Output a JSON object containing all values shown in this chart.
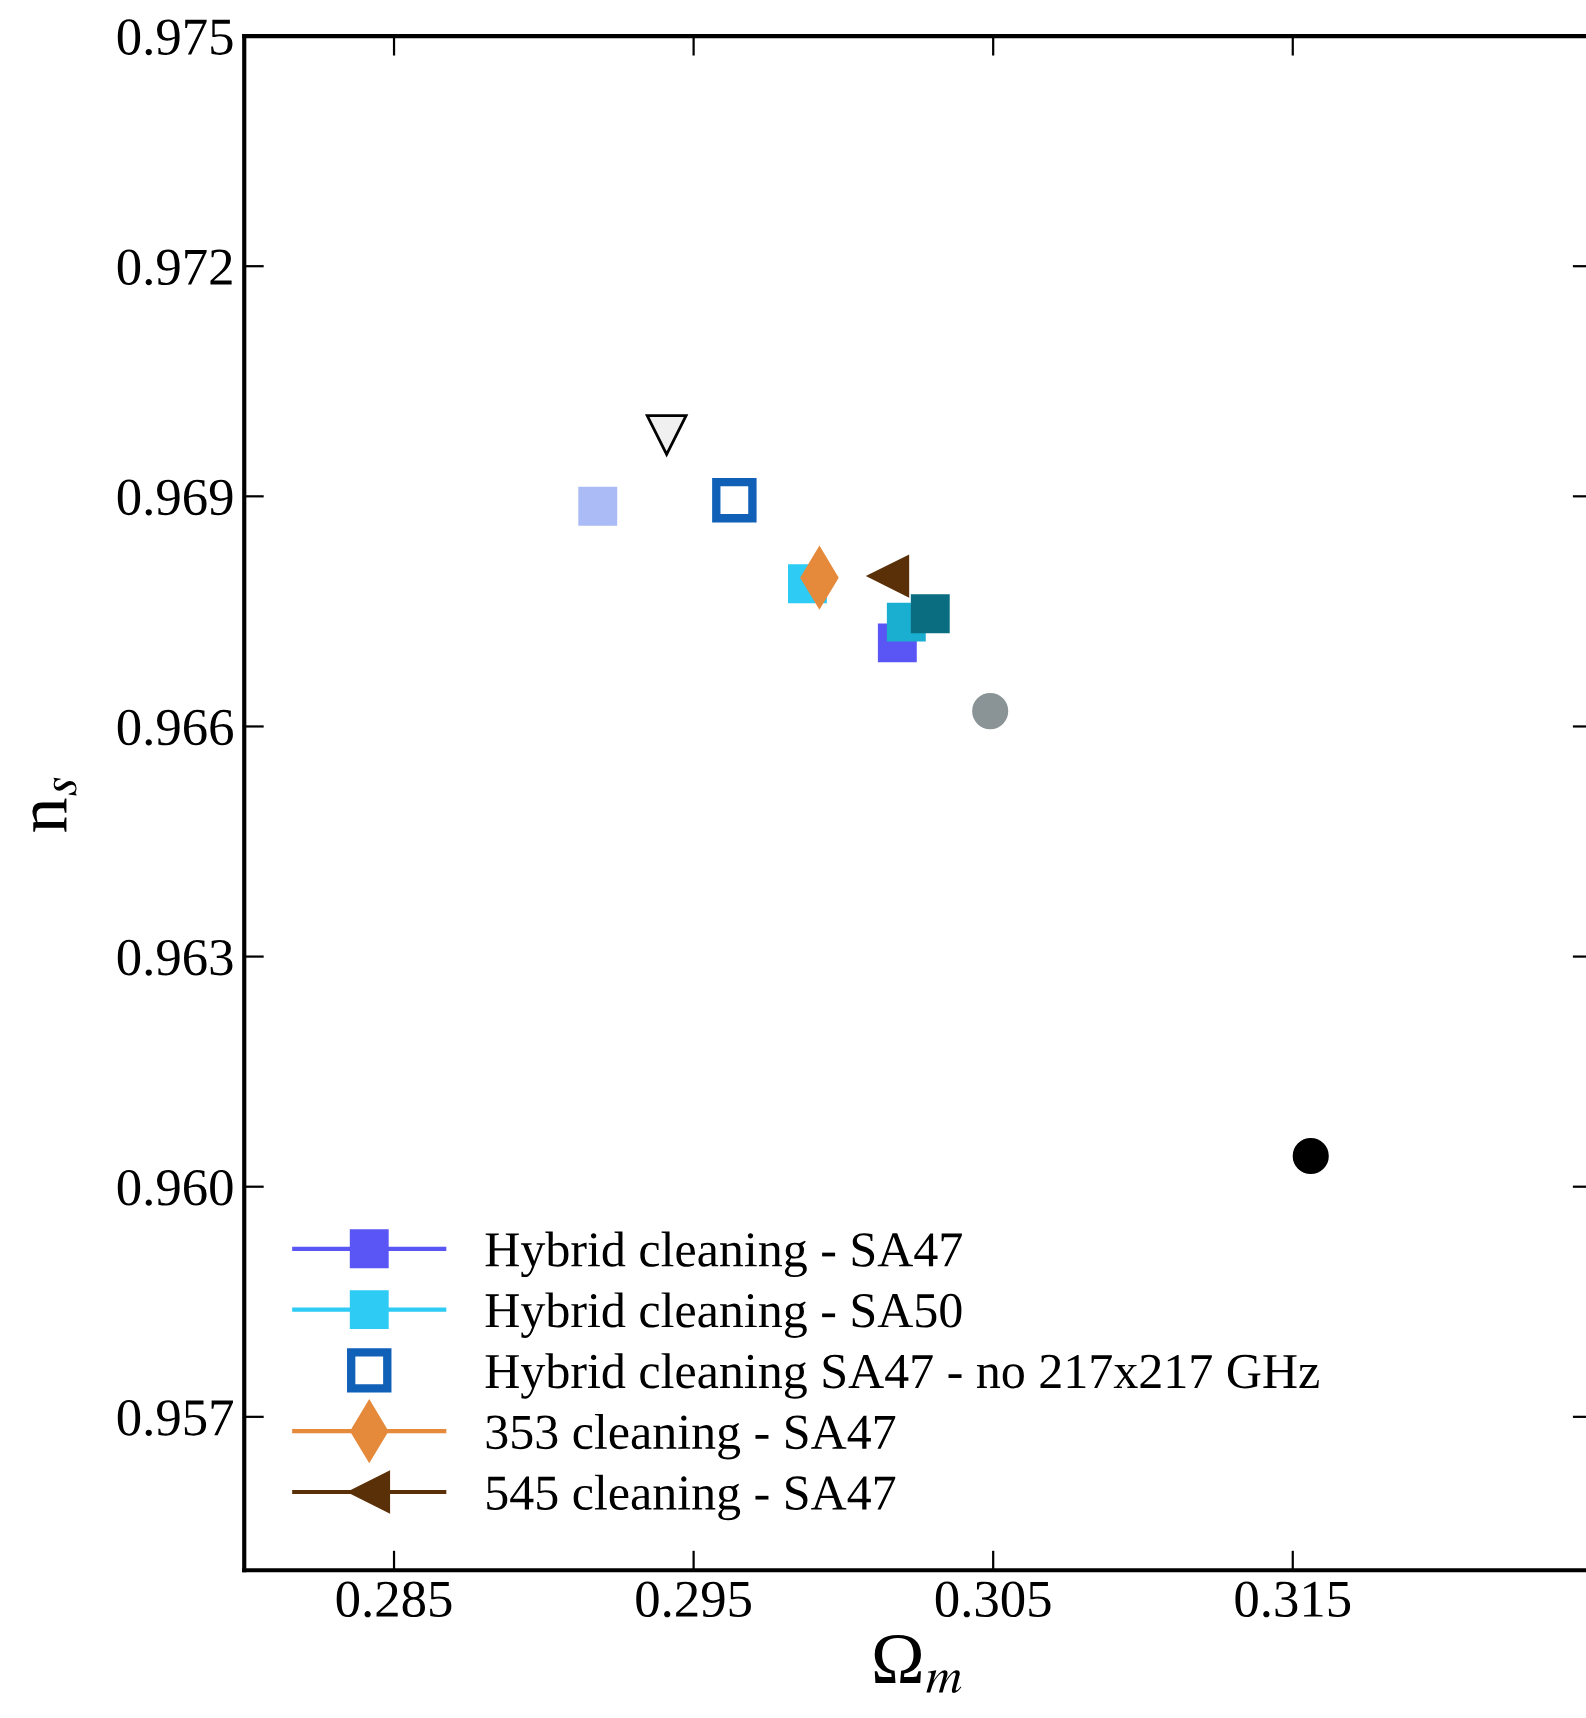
{
  "chart_data": {
    "type": "scatter",
    "xlabel": "Ω$_{m}$",
    "ylabel": "n$_{s}$",
    "xlim": [
      0.28,
      0.325
    ],
    "xticks": [
      0.285,
      0.295,
      0.305,
      0.315
    ],
    "ylim": [
      0.955,
      0.975
    ],
    "yticks": [
      0.957,
      {
        "value": 0.96,
        "label": "0.960"
      },
      0.963,
      0.966,
      0.969,
      0.972,
      0.975
    ],
    "grid": false,
    "legend": "bottom left",
    "series": [
      {
        "name": "Hybrid cleaning - SA47",
        "color": "#5a55f5",
        "marker": "square",
        "x": [
          0.3018
        ],
        "values": [
          0.96709
        ]
      },
      {
        "name": "Hybrid cleaning - SA50",
        "color": "#2ecbf5",
        "marker": "square",
        "x": [
          0.2988
        ],
        "values": [
          0.96786
        ]
      },
      {
        "name": "Hybrid cleaning SA47 - no 217x217 GHz",
        "color": "#1060b8",
        "marker": "square-open",
        "x": [
          0.29636
        ],
        "values": [
          0.96895
        ]
      },
      {
        "name": "353 cleaning - SA47",
        "color": "#e5893a",
        "marker": "diamond",
        "x": [
          0.2992
        ],
        "values": [
          0.96794
        ]
      },
      {
        "name": "545 cleaning - SA47",
        "color": "#5a3008",
        "marker": "triangle-left",
        "x": [
          0.3015
        ],
        "values": [
          0.96796
        ]
      },
      {
        "color": "#f0f0f0",
        "marker": "triangle-down",
        "x": [
          0.2941
        ],
        "values": [
          0.9698
        ]
      },
      {
        "color": "#aabbf5",
        "marker": "square",
        "x": [
          0.2918
        ],
        "values": [
          0.96887
        ]
      },
      {
        "color": "#1aafd0",
        "marker": "square",
        "x": [
          0.3021
        ],
        "values": [
          0.96736
        ]
      },
      {
        "color": "#0a6e80",
        "marker": "square",
        "x": [
          0.3029
        ],
        "values": [
          0.96747
        ]
      },
      {
        "color": "#8a9496",
        "marker": "circle",
        "x": [
          0.3049
        ],
        "values": [
          0.9662
        ]
      },
      {
        "color": "#000000",
        "marker": "circle",
        "x": [
          0.3156
        ],
        "values": [
          0.9604
        ]
      }
    ]
  }
}
